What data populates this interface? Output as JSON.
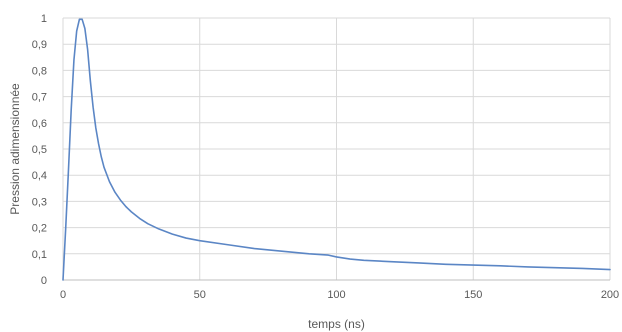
{
  "chart_data": {
    "type": "line",
    "title": "",
    "xlabel": "temps (ns)",
    "ylabel": "Pression adimensionnée",
    "xlim": [
      0,
      200
    ],
    "ylim": [
      0,
      1
    ],
    "grid": "vertical-and-horizontal",
    "legend": "none",
    "xticks": [
      0,
      50,
      100,
      150,
      200
    ],
    "xtick_labels": [
      "0",
      "50",
      "100",
      "150",
      "200"
    ],
    "yticks": [
      0,
      0.1,
      0.2,
      0.3,
      0.4,
      0.5,
      0.6,
      0.7,
      0.8,
      0.9,
      1
    ],
    "ytick_labels": [
      "0",
      "0,1",
      "0,2",
      "0,3",
      "0,4",
      "0,5",
      "0,6",
      "0,7",
      "0,8",
      "0,9",
      "1"
    ],
    "series": [
      {
        "color": "#5b86c5",
        "x": [
          0,
          1,
          2,
          3,
          4,
          5,
          6,
          7,
          8,
          9,
          10,
          11,
          12,
          13,
          14,
          15,
          17,
          19,
          21,
          23,
          25,
          28,
          31,
          35,
          40,
          45,
          50,
          60,
          70,
          80,
          90,
          97,
          100,
          105,
          110,
          120,
          130,
          140,
          150,
          160,
          170,
          180,
          190,
          200
        ],
        "y": [
          0.0,
          0.2,
          0.42,
          0.65,
          0.84,
          0.95,
          0.995,
          0.995,
          0.96,
          0.88,
          0.76,
          0.66,
          0.58,
          0.52,
          0.47,
          0.43,
          0.375,
          0.335,
          0.305,
          0.28,
          0.26,
          0.235,
          0.215,
          0.195,
          0.175,
          0.16,
          0.15,
          0.135,
          0.12,
          0.11,
          0.1,
          0.095,
          0.088,
          0.08,
          0.075,
          0.07,
          0.065,
          0.06,
          0.057,
          0.054,
          0.05,
          0.047,
          0.044,
          0.04
        ]
      }
    ]
  }
}
